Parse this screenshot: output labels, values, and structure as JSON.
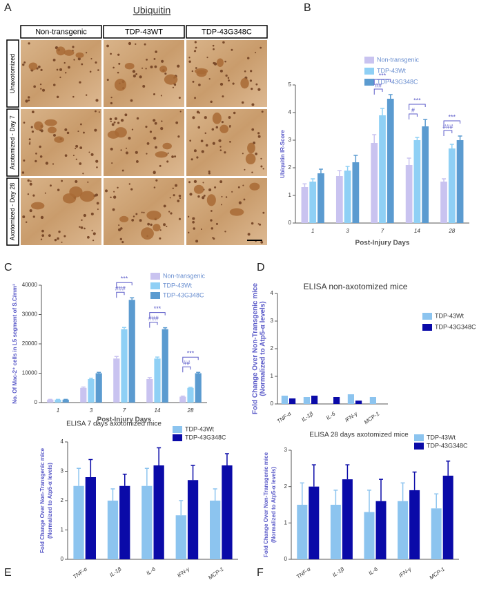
{
  "panel_a": {
    "label": "A",
    "title": "Ubiquitin",
    "columns": [
      "Non-transgenic",
      "TDP-43WT",
      "TDP-43G348C"
    ],
    "rows": [
      "Unaxotomized",
      "Axotomized - Day 7",
      "Axotomized - Day 28"
    ]
  },
  "chart_data": [
    {
      "type": "bar",
      "label": "B",
      "xlabel": "Post-Injury Days",
      "ylabel": [
        "Ubiquitin IR-Score"
      ],
      "categories": [
        "1",
        "3",
        "7",
        "14",
        "28"
      ],
      "ylim": [
        0,
        5
      ],
      "yticks": [
        0,
        1,
        2,
        3,
        4,
        5
      ],
      "series": [
        {
          "name": "Non-transgenic",
          "color": "#c9c3f0",
          "values": [
            1.3,
            1.7,
            2.9,
            2.1,
            1.5
          ],
          "errors": [
            0.12,
            0.2,
            0.3,
            0.25,
            0.1
          ]
        },
        {
          "name": "TDP-43Wt",
          "color": "#8fd0f5",
          "values": [
            1.5,
            1.9,
            3.9,
            3.0,
            2.7
          ],
          "errors": [
            0.1,
            0.15,
            0.25,
            0.1,
            0.15
          ]
        },
        {
          "name": "TDP-43G348C",
          "color": "#5b9bd0",
          "values": [
            1.8,
            2.2,
            4.5,
            3.5,
            3.0
          ],
          "errors": [
            0.15,
            0.25,
            0.15,
            0.25,
            0.15
          ]
        }
      ],
      "annotations": [
        {
          "category": "7",
          "texts": [
            "***",
            "##"
          ]
        },
        {
          "category": "14",
          "texts": [
            "***",
            "#"
          ]
        },
        {
          "category": "28",
          "texts": [
            "***",
            "###"
          ]
        }
      ]
    },
    {
      "type": "bar",
      "label": "C",
      "xlabel": "Post-Injury Days",
      "ylabel": [
        "No. Of Mac-2⁺ cells in L5 segment of S.C/mm³"
      ],
      "categories": [
        "1",
        "3",
        "7",
        "14",
        "28"
      ],
      "ylim": [
        0,
        40000
      ],
      "yticks": [
        0,
        10000,
        20000,
        30000,
        40000
      ],
      "series": [
        {
          "name": "Non-transgenic",
          "color": "#c9c3f0",
          "values": [
            1000,
            5000,
            15000,
            8000,
            2000
          ],
          "errors": [
            100,
            300,
            700,
            500,
            200
          ]
        },
        {
          "name": "TDP-43Wt",
          "color": "#8fd0f5",
          "values": [
            1000,
            8000,
            25000,
            15000,
            5000
          ],
          "errors": [
            100,
            300,
            600,
            500,
            200
          ]
        },
        {
          "name": "TDP-43G348C",
          "color": "#5b9bd0",
          "values": [
            1000,
            10000,
            35000,
            25000,
            10000
          ],
          "errors": [
            100,
            300,
            700,
            500,
            300
          ]
        }
      ],
      "annotations": [
        {
          "category": "7",
          "texts": [
            "***",
            "###"
          ]
        },
        {
          "category": "14",
          "texts": [
            "***",
            "###"
          ]
        },
        {
          "category": "28",
          "texts": [
            "***",
            "##"
          ]
        }
      ]
    },
    {
      "type": "bar",
      "label": "D",
      "title": "ELISA non-axotomized mice",
      "ylabel": [
        "Fold Change Over Non-Transgenic mice",
        "(Normalized to Atp5-α levels)"
      ],
      "categories": [
        "TNF-α",
        "IL-1β",
        "IL-6",
        "IFN-γ",
        "MCP-1"
      ],
      "ylim": [
        0,
        4
      ],
      "yticks": [
        0,
        1,
        2,
        3,
        4
      ],
      "series": [
        {
          "name": "TDP-43Wt",
          "color": "#8cc4ef",
          "values": [
            0.3,
            0.25,
            0,
            0.35,
            0.25
          ]
        },
        {
          "name": "TDP-43G348C",
          "color": "#0a0aa8",
          "values": [
            0.2,
            0.3,
            0.25,
            0.12,
            0
          ]
        }
      ]
    },
    {
      "type": "bar",
      "label": "E",
      "title": "ELISA 7 days axotomized mice",
      "ylabel": [
        "Fold Change Over Non-Transgenic mice",
        "(Normalized to Atp5-α levels)"
      ],
      "categories": [
        "TNF-α",
        "IL-1β",
        "IL-6",
        "IFN-γ",
        "MCP-1"
      ],
      "ylim": [
        0,
        4
      ],
      "yticks": [
        0,
        1,
        2,
        3,
        4
      ],
      "series": [
        {
          "name": "TDP-43Wt",
          "color": "#8cc4ef",
          "values": [
            2.5,
            2.0,
            2.5,
            1.5,
            2.0
          ],
          "errors": [
            0.6,
            0.4,
            0.6,
            0.5,
            0.4
          ]
        },
        {
          "name": "TDP-43G348C",
          "color": "#0a0aa8",
          "values": [
            2.8,
            2.5,
            3.2,
            2.7,
            3.2
          ],
          "errors": [
            0.6,
            0.4,
            0.6,
            0.5,
            0.4
          ]
        }
      ]
    },
    {
      "type": "bar",
      "label": "F",
      "title": "ELISA 28 days axotomized mice",
      "ylabel": [
        "Fold Change Over Non-Transgenic mice",
        "(Normalized to Atp5-α levels)"
      ],
      "categories": [
        "TNF-α",
        "IL-1β",
        "IL-6",
        "IFN-γ",
        "MCP-1"
      ],
      "ylim": [
        0,
        3
      ],
      "yticks": [
        0,
        1,
        2,
        3
      ],
      "series": [
        {
          "name": "TDP-43Wt",
          "color": "#8cc4ef",
          "values": [
            1.5,
            1.5,
            1.3,
            1.6,
            1.4
          ],
          "errors": [
            0.6,
            0.4,
            0.6,
            0.5,
            0.4
          ]
        },
        {
          "name": "TDP-43G348C",
          "color": "#0a0aa8",
          "values": [
            2.0,
            2.2,
            1.6,
            1.9,
            2.3
          ],
          "errors": [
            0.6,
            0.4,
            0.6,
            0.5,
            0.4
          ]
        }
      ]
    }
  ]
}
